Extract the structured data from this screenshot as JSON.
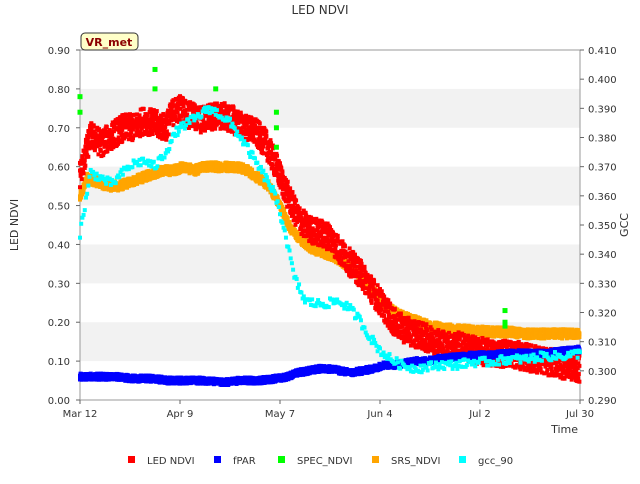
{
  "chart_data": {
    "type": "scatter",
    "title": "LED NDVI",
    "xlabel": "Time",
    "ylabel_left": "LED NDVI",
    "ylabel_right": "GCC",
    "site_badge": "VR_met",
    "x_axis": {
      "units": "days since Mar 12",
      "range": [
        0,
        140
      ],
      "ticks": [
        {
          "day": 0,
          "label": "Mar 12"
        },
        {
          "day": 28,
          "label": "Apr 9"
        },
        {
          "day": 56,
          "label": "May 7"
        },
        {
          "day": 84,
          "label": "Jun 4"
        },
        {
          "day": 112,
          "label": "Jul 2"
        },
        {
          "day": 140,
          "label": "Jul 30"
        }
      ]
    },
    "y_left": {
      "range": [
        0.0,
        0.9
      ],
      "ticks": [
        "0.00",
        "0.10",
        "0.20",
        "0.30",
        "0.40",
        "0.50",
        "0.60",
        "0.70",
        "0.80",
        "0.90"
      ]
    },
    "y_right": {
      "range": [
        0.29,
        0.41
      ],
      "ticks": [
        "0.290",
        "0.300",
        "0.310",
        "0.320",
        "0.330",
        "0.340",
        "0.350",
        "0.360",
        "0.370",
        "0.380",
        "0.390",
        "0.400",
        "0.410"
      ]
    },
    "grid": "horizontal alternating bands",
    "legend_position": "bottom",
    "series": [
      {
        "name": "LED NDVI",
        "axis": "left",
        "color": "#ff0000",
        "spread": 0.035,
        "points": [
          [
            0,
            0.58
          ],
          [
            3,
            0.68
          ],
          [
            6,
            0.66
          ],
          [
            9,
            0.68
          ],
          [
            12,
            0.7
          ],
          [
            15,
            0.7
          ],
          [
            18,
            0.72
          ],
          [
            21,
            0.71
          ],
          [
            24,
            0.7
          ],
          [
            26,
            0.74
          ],
          [
            28,
            0.75
          ],
          [
            31,
            0.73
          ],
          [
            34,
            0.72
          ],
          [
            37,
            0.73
          ],
          [
            40,
            0.73
          ],
          [
            43,
            0.72
          ],
          [
            46,
            0.7
          ],
          [
            49,
            0.69
          ],
          [
            52,
            0.66
          ],
          [
            55,
            0.6
          ],
          [
            58,
            0.53
          ],
          [
            61,
            0.47
          ],
          [
            64,
            0.44
          ],
          [
            67,
            0.43
          ],
          [
            70,
            0.42
          ],
          [
            73,
            0.38
          ],
          [
            76,
            0.35
          ],
          [
            79,
            0.32
          ],
          [
            82,
            0.28
          ],
          [
            85,
            0.24
          ],
          [
            88,
            0.2
          ],
          [
            91,
            0.18
          ],
          [
            94,
            0.17
          ],
          [
            97,
            0.16
          ],
          [
            100,
            0.15
          ],
          [
            103,
            0.14
          ],
          [
            106,
            0.14
          ],
          [
            110,
            0.13
          ],
          [
            115,
            0.12
          ],
          [
            120,
            0.12
          ],
          [
            125,
            0.11
          ],
          [
            130,
            0.1
          ],
          [
            135,
            0.09
          ],
          [
            140,
            0.08
          ]
        ]
      },
      {
        "name": "fPAR",
        "axis": "left",
        "color": "#0000ff",
        "spread": 0.008,
        "points": [
          [
            0,
            0.06
          ],
          [
            5,
            0.06
          ],
          [
            10,
            0.06
          ],
          [
            15,
            0.055
          ],
          [
            20,
            0.055
          ],
          [
            25,
            0.05
          ],
          [
            30,
            0.05
          ],
          [
            35,
            0.05
          ],
          [
            40,
            0.045
          ],
          [
            45,
            0.05
          ],
          [
            50,
            0.05
          ],
          [
            55,
            0.055
          ],
          [
            58,
            0.06
          ],
          [
            61,
            0.07
          ],
          [
            64,
            0.075
          ],
          [
            67,
            0.08
          ],
          [
            70,
            0.08
          ],
          [
            73,
            0.075
          ],
          [
            76,
            0.07
          ],
          [
            79,
            0.075
          ],
          [
            82,
            0.08
          ],
          [
            85,
            0.09
          ],
          [
            88,
            0.09
          ],
          [
            91,
            0.095
          ],
          [
            94,
            0.1
          ],
          [
            97,
            0.1
          ],
          [
            100,
            0.105
          ],
          [
            103,
            0.11
          ],
          [
            106,
            0.11
          ],
          [
            110,
            0.115
          ],
          [
            115,
            0.115
          ],
          [
            120,
            0.12
          ],
          [
            125,
            0.12
          ],
          [
            130,
            0.12
          ],
          [
            135,
            0.125
          ],
          [
            140,
            0.13
          ]
        ]
      },
      {
        "name": "SPEC_NDVI",
        "axis": "left",
        "color": "#00ff00",
        "spread": 0.0,
        "points": [
          [
            0,
            0.78
          ],
          [
            0,
            0.74
          ],
          [
            21,
            0.85
          ],
          [
            21,
            0.8
          ],
          [
            38,
            0.8
          ],
          [
            55,
            0.74
          ],
          [
            55,
            0.7
          ],
          [
            55,
            0.65
          ],
          [
            119,
            0.23
          ],
          [
            119,
            0.2
          ],
          [
            119,
            0.19
          ]
        ]
      },
      {
        "name": "SRS_NDVI",
        "axis": "left",
        "color": "#ffa500",
        "spread": 0.012,
        "points": [
          [
            0,
            0.52
          ],
          [
            2,
            0.57
          ],
          [
            5,
            0.56
          ],
          [
            8,
            0.55
          ],
          [
            11,
            0.55
          ],
          [
            14,
            0.56
          ],
          [
            17,
            0.57
          ],
          [
            20,
            0.58
          ],
          [
            23,
            0.59
          ],
          [
            26,
            0.59
          ],
          [
            29,
            0.6
          ],
          [
            32,
            0.59
          ],
          [
            35,
            0.6
          ],
          [
            38,
            0.6
          ],
          [
            41,
            0.6
          ],
          [
            44,
            0.6
          ],
          [
            47,
            0.59
          ],
          [
            50,
            0.57
          ],
          [
            53,
            0.55
          ],
          [
            56,
            0.5
          ],
          [
            59,
            0.44
          ],
          [
            62,
            0.41
          ],
          [
            65,
            0.39
          ],
          [
            68,
            0.38
          ],
          [
            71,
            0.37
          ],
          [
            74,
            0.35
          ],
          [
            77,
            0.33
          ],
          [
            80,
            0.3
          ],
          [
            83,
            0.27
          ],
          [
            86,
            0.24
          ],
          [
            89,
            0.22
          ],
          [
            92,
            0.21
          ],
          [
            95,
            0.2
          ],
          [
            98,
            0.19
          ],
          [
            102,
            0.185
          ],
          [
            106,
            0.18
          ],
          [
            110,
            0.18
          ],
          [
            115,
            0.175
          ],
          [
            120,
            0.175
          ],
          [
            125,
            0.17
          ],
          [
            130,
            0.17
          ],
          [
            135,
            0.17
          ],
          [
            140,
            0.17
          ]
        ]
      },
      {
        "name": "gcc_90",
        "axis": "right",
        "color": "#00ffff",
        "spread": 0.0015,
        "points": [
          [
            0,
            0.347
          ],
          [
            3,
            0.368
          ],
          [
            6,
            0.366
          ],
          [
            9,
            0.364
          ],
          [
            12,
            0.368
          ],
          [
            15,
            0.371
          ],
          [
            18,
            0.372
          ],
          [
            21,
            0.37
          ],
          [
            24,
            0.375
          ],
          [
            27,
            0.382
          ],
          [
            30,
            0.385
          ],
          [
            33,
            0.387
          ],
          [
            36,
            0.39
          ],
          [
            39,
            0.388
          ],
          [
            42,
            0.385
          ],
          [
            45,
            0.38
          ],
          [
            48,
            0.374
          ],
          [
            51,
            0.368
          ],
          [
            54,
            0.362
          ],
          [
            57,
            0.35
          ],
          [
            60,
            0.332
          ],
          [
            63,
            0.324
          ],
          [
            66,
            0.323
          ],
          [
            69,
            0.323
          ],
          [
            72,
            0.324
          ],
          [
            75,
            0.322
          ],
          [
            78,
            0.318
          ],
          [
            81,
            0.312
          ],
          [
            84,
            0.307
          ],
          [
            87,
            0.304
          ],
          [
            90,
            0.302
          ],
          [
            93,
            0.301
          ],
          [
            96,
            0.301
          ],
          [
            100,
            0.302
          ],
          [
            105,
            0.302
          ],
          [
            110,
            0.303
          ],
          [
            115,
            0.303
          ],
          [
            120,
            0.304
          ],
          [
            125,
            0.304
          ],
          [
            130,
            0.305
          ],
          [
            135,
            0.305
          ],
          [
            140,
            0.306
          ]
        ]
      }
    ]
  }
}
